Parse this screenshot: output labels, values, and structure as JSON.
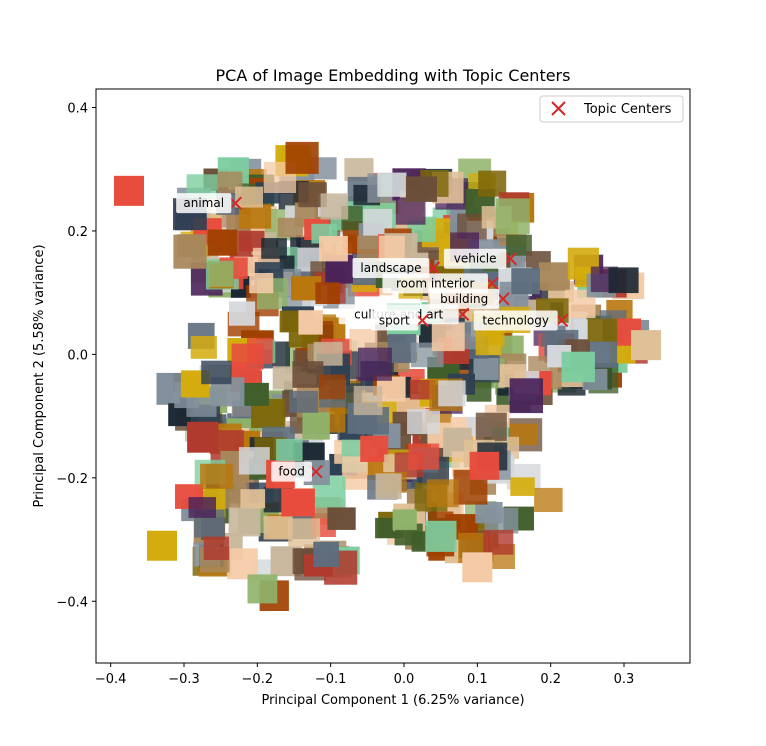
{
  "chart_data": {
    "type": "scatter",
    "title": "PCA of Image Embedding with Topic Centers",
    "xlabel": "Principal Component 1 (6.25% variance)",
    "ylabel": "Principal Component 2 (5.58% variance)",
    "xlim": [
      -0.42,
      0.39
    ],
    "ylim": [
      -0.5,
      0.43
    ],
    "x_ticks": [
      -0.4,
      -0.3,
      -0.2,
      -0.1,
      0.0,
      0.1,
      0.2,
      0.3
    ],
    "x_tick_labels": [
      "−0.4",
      "−0.3",
      "−0.2",
      "−0.1",
      "0.0",
      "0.1",
      "0.2",
      "0.3"
    ],
    "y_ticks": [
      0.4,
      0.2,
      0.0,
      -0.2,
      -0.4
    ],
    "y_tick_labels": [
      "0.4",
      "0.2",
      "0.0",
      "−0.2",
      "−0.4"
    ],
    "grid": false,
    "legend": {
      "position": "top-right",
      "entries": [
        "Topic Centers"
      ]
    },
    "marker_color": "#d62728",
    "series": [
      {
        "name": "Topic Centers",
        "points": [
          {
            "label": "animal",
            "x": -0.23,
            "y": 0.245
          },
          {
            "label": "vehicle",
            "x": 0.145,
            "y": 0.155
          },
          {
            "label": "landscape",
            "x": 0.04,
            "y": 0.14
          },
          {
            "label": "room interior",
            "x": 0.12,
            "y": 0.115
          },
          {
            "label": "building",
            "x": 0.135,
            "y": 0.09
          },
          {
            "label": "culture and art",
            "x": 0.08,
            "y": 0.065
          },
          {
            "label": "sport",
            "x": 0.025,
            "y": 0.055
          },
          {
            "label": "technology",
            "x": 0.215,
            "y": 0.055
          },
          {
            "label": "food",
            "x": -0.12,
            "y": -0.19
          }
        ]
      }
    ]
  }
}
